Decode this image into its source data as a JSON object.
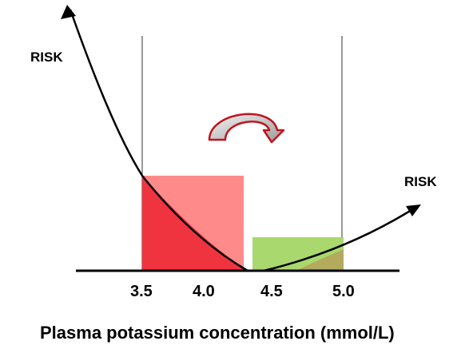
{
  "labels": {
    "risk_left": "RISK",
    "risk_right": "RISK",
    "x_axis_title": "Plasma potassium concentration (mmol/L)"
  },
  "ticks": [
    "3.5",
    "4.0",
    "4.5",
    "5.0"
  ],
  "regions": {
    "red_range": [
      3.5,
      4.0
    ],
    "green_range": [
      4.5,
      5.0
    ]
  },
  "colors": {
    "red_fill": "#ff8a8a",
    "red_dark": "#f0343f",
    "green_fill": "#a9d86e",
    "arrow": "#c0151f",
    "axis": "#000000"
  }
}
